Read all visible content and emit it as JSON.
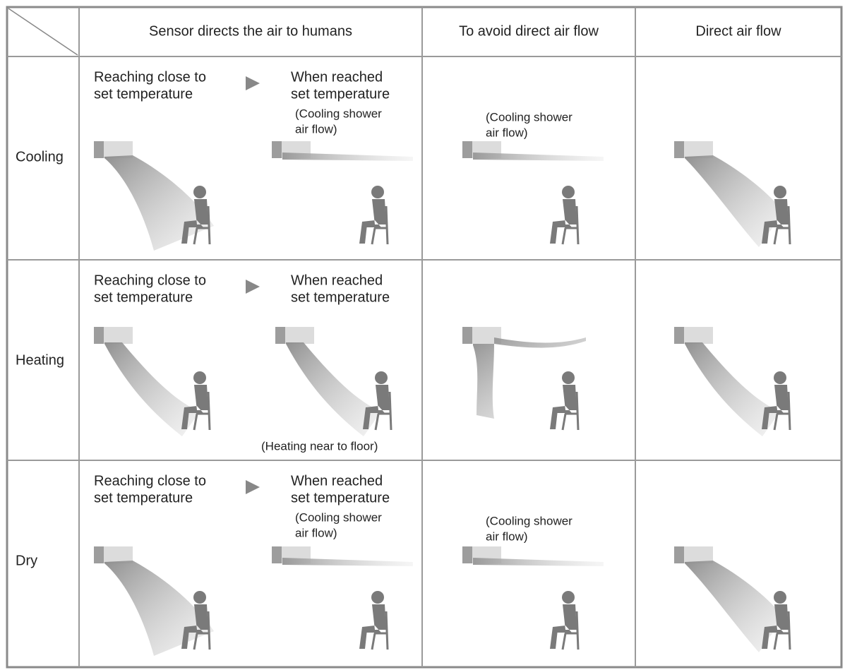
{
  "header": [
    "Sensor directs the air to humans",
    "To avoid direct air flow",
    "Direct air flow"
  ],
  "rows": [
    {
      "label": "Cooling",
      "left": [
        "Reaching close to",
        "set temperature"
      ],
      "right": [
        "When reached",
        "set temperature"
      ],
      "note": [
        "(Cooling shower",
        "air flow)"
      ],
      "avoid_note": [
        "(Cooling shower",
        "air flow)"
      ]
    },
    {
      "label": "Heating",
      "left": [
        "Reaching close to",
        "set temperature"
      ],
      "right": [
        "When reached",
        "set temperature"
      ],
      "note": [
        "(Heating near to floor)"
      ]
    },
    {
      "label": "Dry",
      "left": [
        "Reaching close to",
        "set temperature"
      ],
      "right": [
        "When reached",
        "set temperature"
      ],
      "note": [
        "(Cooling shower",
        "air flow)"
      ],
      "avoid_note": [
        "(Cooling shower",
        "air flow)"
      ]
    }
  ]
}
